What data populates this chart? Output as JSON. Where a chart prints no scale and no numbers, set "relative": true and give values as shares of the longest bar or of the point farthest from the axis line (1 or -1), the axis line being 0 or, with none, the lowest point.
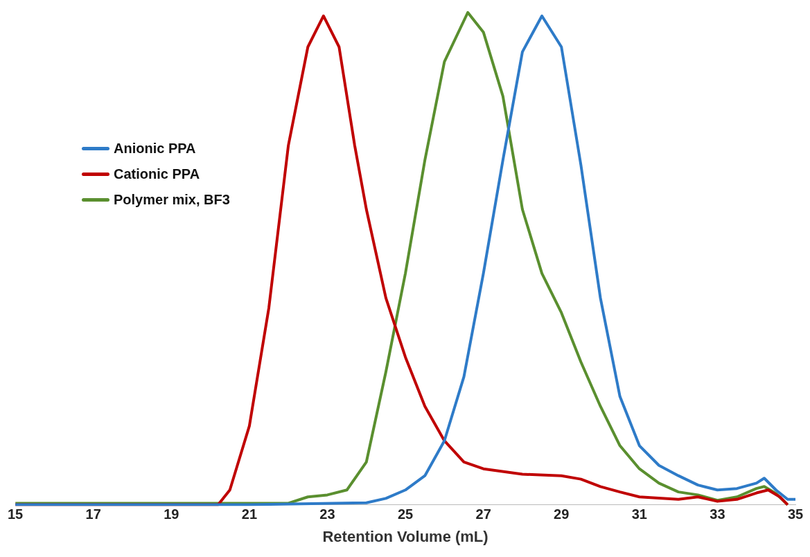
{
  "chart_data": {
    "type": "line",
    "relative": true,
    "xlabel": "Retention Volume (mL)",
    "xlim": [
      15,
      35
    ],
    "xticks": [
      15,
      17,
      19,
      21,
      23,
      25,
      27,
      29,
      31,
      33,
      35
    ],
    "grid": false,
    "legend": "top left",
    "marker": "none",
    "line_style": "solid",
    "series": [
      {
        "name": "Anionic PPA",
        "color": "#2e7bc8",
        "x": [
          15,
          21,
          24,
          24.5,
          25,
          25.5,
          26,
          26.5,
          27,
          27.5,
          28,
          28.5,
          29,
          29.5,
          30,
          30.5,
          31,
          31.5,
          32,
          32.5,
          33,
          33.5,
          34,
          34.2,
          34.5,
          34.8,
          35
        ],
        "values": [
          0,
          0,
          0.004,
          0.013,
          0.03,
          0.059,
          0.13,
          0.26,
          0.47,
          0.7,
          0.92,
          0.993,
          0.93,
          0.69,
          0.42,
          0.22,
          0.12,
          0.08,
          0.059,
          0.04,
          0.03,
          0.033,
          0.044,
          0.054,
          0.03,
          0.011,
          0.011
        ]
      },
      {
        "name": "Cationic PPA",
        "color": "#c00000",
        "x": [
          15,
          20.2,
          20.5,
          21,
          21.5,
          22,
          22.5,
          22.9,
          23.3,
          23.7,
          24,
          24.5,
          25,
          25.5,
          26,
          26.5,
          27,
          28,
          29,
          29.5,
          30,
          30.5,
          31,
          32,
          32.5,
          33,
          33.5,
          34,
          34.3,
          34.6,
          34.8
        ],
        "values": [
          0,
          0,
          0.03,
          0.16,
          0.4,
          0.73,
          0.93,
          0.993,
          0.93,
          0.73,
          0.6,
          0.42,
          0.3,
          0.2,
          0.13,
          0.087,
          0.073,
          0.062,
          0.059,
          0.052,
          0.037,
          0.026,
          0.016,
          0.011,
          0.016,
          0.007,
          0.011,
          0.024,
          0.03,
          0.016,
          0
        ]
      },
      {
        "name": "Polymer mix, BF3",
        "color": "#5a8f2f",
        "x": [
          15,
          22,
          22.5,
          23,
          23.5,
          24,
          24.5,
          25,
          25.5,
          26,
          26.6,
          27,
          27.5,
          28,
          28.5,
          29,
          29.5,
          30,
          30.5,
          31,
          31.5,
          32,
          32.5,
          33,
          33.5,
          34,
          34.2,
          34.5,
          34.8
        ],
        "values": [
          0.003,
          0.003,
          0.016,
          0.02,
          0.03,
          0.087,
          0.27,
          0.47,
          0.7,
          0.9,
          1,
          0.96,
          0.83,
          0.6,
          0.47,
          0.39,
          0.29,
          0.2,
          0.12,
          0.073,
          0.044,
          0.026,
          0.02,
          0.009,
          0.016,
          0.033,
          0.037,
          0.023,
          0
        ]
      }
    ]
  }
}
